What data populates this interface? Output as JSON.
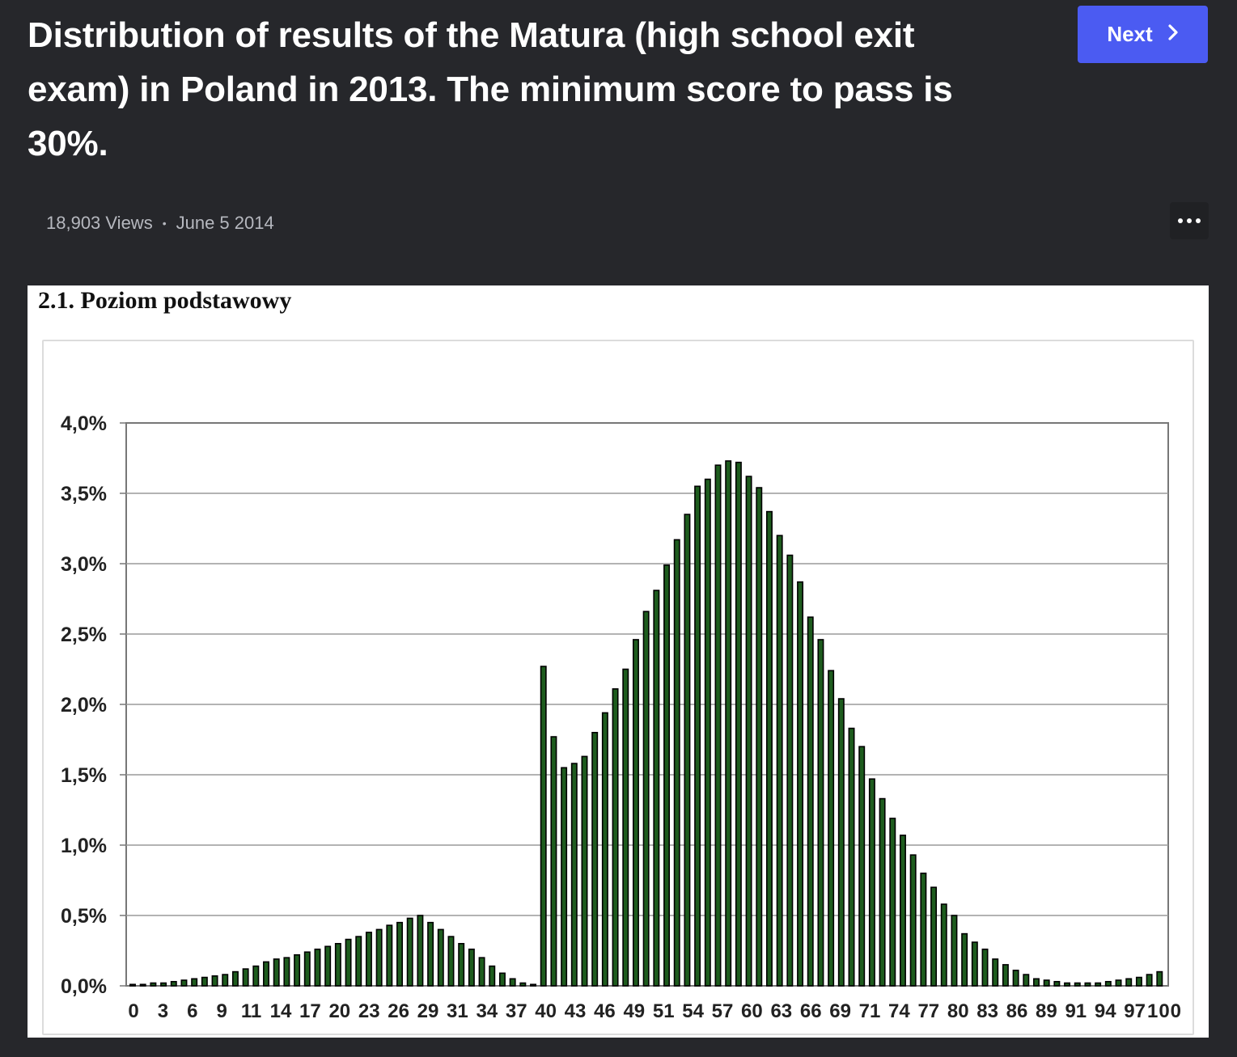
{
  "header": {
    "title": "Distribution of results of the Matura (high school exit exam) in Poland in 2013. The minimum score to pass is 30%.",
    "next_label": "Next"
  },
  "meta": {
    "views": "18,903 Views",
    "separator": "•",
    "date": "June 5 2014"
  },
  "icons": {
    "next": "chevron-right-icon",
    "more": "more-horizontal-icon"
  },
  "colors": {
    "background": "#26272b",
    "accent": "#4b5bf2",
    "bar_fill": "#1e5c1e",
    "bar_stroke": "#000000"
  },
  "chart_data": {
    "type": "bar",
    "title": "2.1. Poziom podstawowy",
    "xlabel": "",
    "ylabel": "",
    "ylim": [
      0,
      4.0
    ],
    "grid": true,
    "y_ticks": [
      "0,0%",
      "0,5%",
      "1,0%",
      "1,5%",
      "2,0%",
      "2,5%",
      "3,0%",
      "3,5%",
      "4,0%"
    ],
    "x_tick_labels": [
      "0",
      "3",
      "6",
      "9",
      "11",
      "14",
      "17",
      "20",
      "23",
      "26",
      "29",
      "31",
      "34",
      "37",
      "40",
      "43",
      "46",
      "49",
      "51",
      "54",
      "57",
      "60",
      "63",
      "66",
      "69",
      "71",
      "74",
      "77",
      "80",
      "83",
      "86",
      "89",
      "91",
      "94",
      "97",
      "100"
    ],
    "categories": [
      "0",
      "1",
      "2",
      "3",
      "4",
      "5",
      "6",
      "7",
      "8",
      "9",
      "10",
      "11",
      "12",
      "13",
      "14",
      "15",
      "16",
      "17",
      "18",
      "19",
      "20",
      "21",
      "22",
      "23",
      "24",
      "25",
      "26",
      "27",
      "28",
      "29",
      "30",
      "31",
      "32",
      "33",
      "34",
      "35",
      "36",
      "37",
      "38",
      "39",
      "40",
      "41",
      "42",
      "43",
      "44",
      "45",
      "46",
      "47",
      "48",
      "49",
      "50",
      "51",
      "52",
      "53",
      "54",
      "55",
      "56",
      "57",
      "58",
      "59",
      "60",
      "61",
      "62",
      "63",
      "64",
      "65",
      "66",
      "67",
      "68",
      "69",
      "70",
      "71",
      "72",
      "73",
      "74",
      "75",
      "76",
      "77",
      "78",
      "79",
      "80",
      "81",
      "82",
      "83",
      "84",
      "85",
      "86",
      "87",
      "88",
      "89",
      "90",
      "91",
      "92",
      "93",
      "94",
      "95",
      "96",
      "97",
      "98",
      "99",
      "100"
    ],
    "values": [
      0.01,
      0.01,
      0.02,
      0.02,
      0.03,
      0.04,
      0.05,
      0.06,
      0.07,
      0.08,
      0.1,
      0.12,
      0.14,
      0.17,
      0.19,
      0.2,
      0.22,
      0.24,
      0.26,
      0.28,
      0.3,
      0.33,
      0.35,
      0.38,
      0.4,
      0.43,
      0.45,
      0.48,
      0.5,
      0.45,
      0.4,
      0.35,
      0.3,
      0.26,
      0.2,
      0.14,
      0.09,
      0.05,
      0.02,
      0.01,
      2.27,
      1.77,
      1.55,
      1.58,
      1.63,
      1.8,
      1.94,
      2.11,
      2.25,
      2.46,
      2.66,
      2.81,
      2.99,
      3.17,
      3.35,
      3.55,
      3.6,
      3.7,
      3.73,
      3.72,
      3.62,
      3.54,
      3.37,
      3.2,
      3.06,
      2.87,
      2.62,
      2.46,
      2.24,
      2.04,
      1.83,
      1.7,
      1.47,
      1.33,
      1.19,
      1.07,
      0.93,
      0.8,
      0.7,
      0.58,
      0.5,
      0.37,
      0.31,
      0.26,
      0.19,
      0.15,
      0.11,
      0.08,
      0.05,
      0.04,
      0.03,
      0.02,
      0.02,
      0.02,
      0.02,
      0.03,
      0.04,
      0.05,
      0.06,
      0.08,
      0.1
    ]
  }
}
